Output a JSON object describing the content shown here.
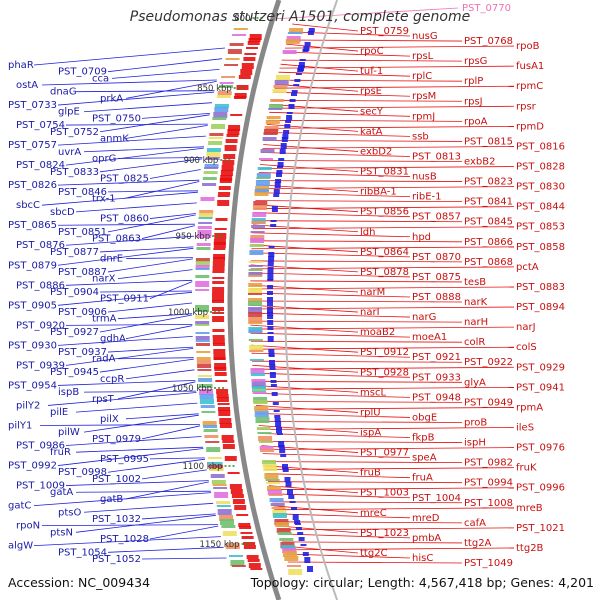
{
  "title": "Pseudomonas stutzeri A1501, complete genome",
  "footer": {
    "accession": "Accession: NC_009434",
    "summary": "Topology: circular; Length: 4,567,418 bp; Genes: 4,201"
  },
  "colors": {
    "forward_strand": "#1f1fe0",
    "reverse_strand": "#e81010",
    "backbone": "#888888",
    "tick": "#2a8a2a",
    "highlight": "#f070b0"
  },
  "ticks": [
    {
      "label": "800"
    },
    {
      "label": "850 kbp"
    },
    {
      "label": "900 kbp"
    },
    {
      "label": "950 kbp"
    },
    {
      "label": "1000 kbp"
    },
    {
      "label": "1050 kbp"
    },
    {
      "label": "1100 kbp"
    },
    {
      "label": "1150 kbp"
    }
  ],
  "left_labels": [
    "phaR",
    "PST_0709",
    "cca",
    "ostA",
    "dnaG",
    "prkA",
    "PST_0733",
    "glpE",
    "PST_0750",
    "PST_0754",
    "PST_0752",
    "anmK",
    "PST_0757",
    "uvrA",
    "oprG",
    "PST_0824",
    "PST_0833",
    "PST_0825",
    "PST_0826",
    "PST_0846",
    "trx-1",
    "sbcC",
    "sbcD",
    "PST_0860",
    "PST_0865",
    "PST_0851",
    "PST_0863",
    "PST_0876",
    "PST_0877",
    "dnrE",
    "PST_0879",
    "PST_0887",
    "narX",
    "PST_0886",
    "PST_0904",
    "PST_0911",
    "PST_0905",
    "PST_0906",
    "trmA",
    "PST_0920",
    "PST_0927",
    "gdhA",
    "PST_0930",
    "PST_0937",
    "radA",
    "PST_0939",
    "PST_0945",
    "ccpR",
    "PST_0954",
    "ispB",
    "rpsT",
    "pilY2",
    "pilE",
    "pilX",
    "pilY1",
    "pilW",
    "PST_0979",
    "PST_0986",
    "fruR",
    "PST_0995",
    "PST_0992",
    "PST_0998",
    "PST_1002",
    "PST_1009",
    "gatA",
    "gatB",
    "gatC",
    "ptsO",
    "PST_1032",
    "rpoN",
    "ptsN",
    "PST_1028",
    "algW",
    "PST_1054",
    "PST_1052"
  ],
  "right_labels": [
    "PST_0759",
    "nusG",
    "PST_0768",
    "rpoB",
    "rpoC",
    "rpsL",
    "rpsG",
    "fusA1",
    "tuf-1",
    "rplC",
    "rplP",
    "rpmC",
    "rpsE",
    "rpsM",
    "rpsJ",
    "rpsr",
    "secY",
    "rpmJ",
    "rpoA",
    "rpmD",
    "katA",
    "ssb",
    "PST_0815",
    "PST_0816",
    "exbD2",
    "PST_0813",
    "exbB2",
    "PST_0828",
    "PST_0831",
    "nusB",
    "PST_0823",
    "PST_0830",
    "ribBA-1",
    "ribE-1",
    "PST_0841",
    "PST_0844",
    "PST_0856",
    "PST_0857",
    "PST_0845",
    "PST_0853",
    "ldh",
    "hpd",
    "PST_0866",
    "PST_0858",
    "PST_0864",
    "PST_0870",
    "PST_0868",
    "pctA",
    "PST_0878",
    "PST_0875",
    "tesB",
    "PST_0883",
    "narM",
    "PST_0888",
    "narK",
    "PST_0894",
    "narI",
    "narG",
    "narH",
    "narJ",
    "moaB2",
    "moeA1",
    "colR",
    "colS",
    "PST_0912",
    "PST_0921",
    "PST_0922",
    "PST_0929",
    "PST_0928",
    "PST_0933",
    "glyA",
    "PST_0941",
    "mscL",
    "PST_0948",
    "PST_0949",
    "rpmA",
    "rplU",
    "obgE",
    "proB",
    "ileS",
    "ispA",
    "fkpB",
    "ispH",
    "PST_0976",
    "PST_0977",
    "speA",
    "PST_0982",
    "fruK",
    "fruB",
    "fruA",
    "PST_0994",
    "PST_0996",
    "PST_1003",
    "PST_1004",
    "PST_1008",
    "mreB",
    "mreC",
    "mreD",
    "cafA",
    "PST_1021",
    "PST_1023",
    "pmbA",
    "ttg2A",
    "ttg2B",
    "ttg2C",
    "hisC",
    "PST_1049"
  ],
  "highlight_labels": [
    "PST_0770"
  ]
}
